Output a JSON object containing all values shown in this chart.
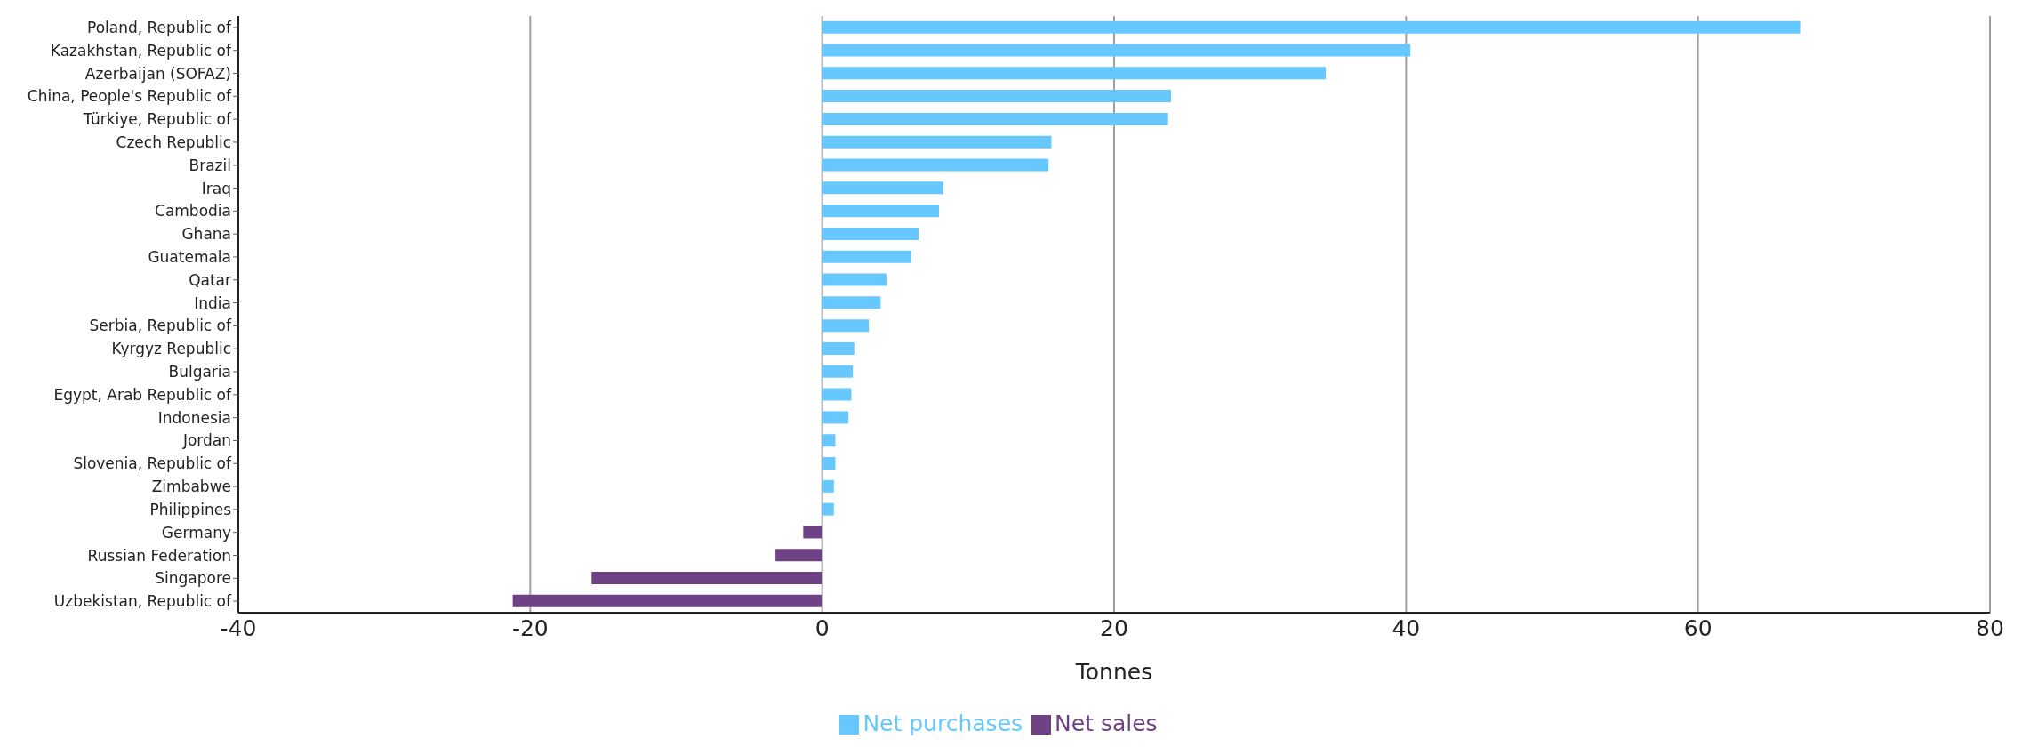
{
  "chart_data": {
    "type": "bar",
    "orientation": "horizontal",
    "stacked": true,
    "xlabel": "Tonnes",
    "categories": [
      "Poland, Republic of",
      "Kazakhstan, Republic of",
      "Azerbaijan (SOFAZ)",
      "China, People's Republic of",
      "Türkiye, Republic of",
      "Czech Republic",
      "Brazil",
      "Iraq",
      "Cambodia",
      "Ghana",
      "Guatemala",
      "Qatar",
      "India",
      "Serbia, Republic of",
      "Kyrgyz Republic",
      "Bulgaria",
      "Egypt, Arab Republic of",
      "Indonesia",
      "Jordan",
      "Slovenia, Republic of",
      "Zimbabwe",
      "Philippines",
      "Germany",
      "Russian Federation",
      "Singapore",
      "Uzbekistan, Republic of"
    ],
    "series": [
      {
        "name": "Net purchases",
        "color": "#66c8ff",
        "values": [
          67.0,
          40.3,
          34.5,
          23.9,
          23.7,
          15.7,
          15.5,
          8.3,
          8.0,
          6.6,
          6.1,
          4.4,
          4.0,
          3.2,
          2.2,
          2.1,
          2.0,
          1.8,
          0.9,
          0.9,
          0.8,
          0.8,
          null,
          null,
          null,
          null
        ]
      },
      {
        "name": "Net sales",
        "color": "#6f4285",
        "values": [
          null,
          null,
          null,
          null,
          null,
          null,
          null,
          null,
          null,
          null,
          null,
          null,
          null,
          null,
          null,
          null,
          null,
          null,
          null,
          null,
          null,
          null,
          -1.3,
          -3.2,
          -15.8,
          -21.2
        ]
      }
    ],
    "xlim": [
      -40,
      80
    ],
    "xticks": [
      -40,
      -20,
      0,
      20,
      40,
      60,
      80
    ],
    "grid": "x",
    "legend": "bottom"
  }
}
